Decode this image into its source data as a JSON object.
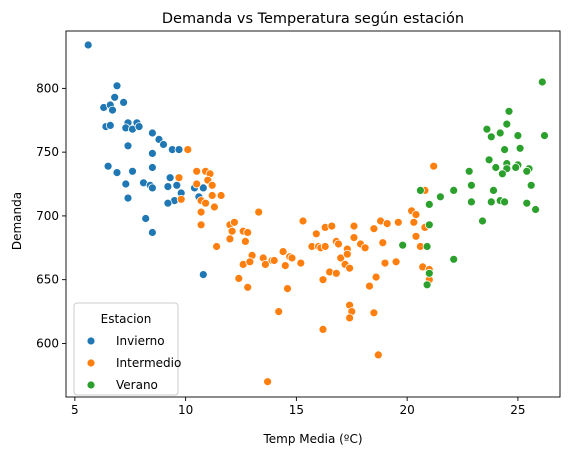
{
  "chart_data": {
    "type": "scatter",
    "title": "Demanda vs Temperatura según estación",
    "xlabel": "Temp Media (ºC)",
    "ylabel": "Demanda",
    "xlim": [
      4.6,
      26.9
    ],
    "ylim": [
      558,
      845
    ],
    "xticks": [
      5,
      10,
      15,
      20,
      25
    ],
    "yticks": [
      600,
      650,
      700,
      750,
      800
    ],
    "grid": false,
    "legend": {
      "title": "Estacion",
      "position": "lower-left"
    },
    "series": [
      {
        "name": "Invierno",
        "color": "#1f77b4",
        "points": [
          [
            5.6,
            834
          ],
          [
            6.3,
            785
          ],
          [
            6.6,
            787
          ],
          [
            6.9,
            802
          ],
          [
            6.8,
            793
          ],
          [
            7.2,
            789
          ],
          [
            6.7,
            783
          ],
          [
            6.4,
            770
          ],
          [
            6.6,
            771
          ],
          [
            7.4,
            773
          ],
          [
            7.3,
            769
          ],
          [
            7.6,
            768
          ],
          [
            7.8,
            773
          ],
          [
            7.9,
            770
          ],
          [
            8.5,
            765
          ],
          [
            8.8,
            760
          ],
          [
            9.0,
            756
          ],
          [
            9.4,
            752
          ],
          [
            9.7,
            752
          ],
          [
            8.5,
            749
          ],
          [
            7.4,
            755
          ],
          [
            6.5,
            739
          ],
          [
            6.9,
            734
          ],
          [
            7.6,
            735
          ],
          [
            8.5,
            738
          ],
          [
            9.3,
            730
          ],
          [
            9.2,
            723
          ],
          [
            9.6,
            724
          ],
          [
            9.8,
            718
          ],
          [
            8.1,
            726
          ],
          [
            8.4,
            724
          ],
          [
            8.5,
            722
          ],
          [
            7.3,
            725
          ],
          [
            7.4,
            714
          ],
          [
            9.5,
            712
          ],
          [
            9.2,
            710
          ],
          [
            10.8,
            722
          ],
          [
            10.6,
            715
          ],
          [
            10.4,
            722
          ],
          [
            8.2,
            698
          ],
          [
            8.5,
            687
          ],
          [
            10.8,
            654
          ]
        ]
      },
      {
        "name": "Intermedio",
        "color": "#ff7f0e",
        "points": [
          [
            10.1,
            752
          ],
          [
            9.7,
            730
          ],
          [
            10.5,
            735
          ],
          [
            10.9,
            735
          ],
          [
            11.1,
            733
          ],
          [
            11.0,
            728
          ],
          [
            10.5,
            725
          ],
          [
            11.2,
            724
          ],
          [
            11.2,
            716
          ],
          [
            9.8,
            713
          ],
          [
            10.7,
            712
          ],
          [
            10.9,
            710
          ],
          [
            11.3,
            707
          ],
          [
            11.6,
            716
          ],
          [
            10.7,
            703
          ],
          [
            12.0,
            693
          ],
          [
            12.2,
            695
          ],
          [
            10.7,
            693
          ],
          [
            12.1,
            688
          ],
          [
            12.0,
            682
          ],
          [
            11.4,
            676
          ],
          [
            12.6,
            688
          ],
          [
            12.8,
            687
          ],
          [
            12.7,
            680
          ],
          [
            13.3,
            703
          ],
          [
            13.0,
            669
          ],
          [
            13.5,
            667
          ],
          [
            12.6,
            662
          ],
          [
            12.9,
            664
          ],
          [
            13.9,
            665
          ],
          [
            14.0,
            665
          ],
          [
            14.4,
            672
          ],
          [
            14.7,
            668
          ],
          [
            14.8,
            667
          ],
          [
            14.5,
            661
          ],
          [
            15.2,
            663
          ],
          [
            13.6,
            662
          ],
          [
            12.4,
            651
          ],
          [
            12.8,
            644
          ],
          [
            14.6,
            643
          ],
          [
            14.2,
            625
          ],
          [
            15.3,
            696
          ],
          [
            15.7,
            676
          ],
          [
            16.0,
            676
          ],
          [
            16.1,
            675
          ],
          [
            16.3,
            676
          ],
          [
            15.9,
            686
          ],
          [
            16.3,
            691
          ],
          [
            16.6,
            692
          ],
          [
            16.8,
            680
          ],
          [
            16.9,
            678
          ],
          [
            17.3,
            674
          ],
          [
            17.0,
            667
          ],
          [
            16.5,
            656
          ],
          [
            16.8,
            655
          ],
          [
            17.2,
            662
          ],
          [
            17.3,
            670
          ],
          [
            17.6,
            692
          ],
          [
            17.9,
            678
          ],
          [
            17.6,
            683
          ],
          [
            17.4,
            659
          ],
          [
            16.2,
            650
          ],
          [
            18.1,
            675
          ],
          [
            18.5,
            690
          ],
          [
            18.9,
            679
          ],
          [
            18.8,
            696
          ],
          [
            19.1,
            694
          ],
          [
            19.6,
            695
          ],
          [
            20.2,
            704
          ],
          [
            20.4,
            701
          ],
          [
            20.8,
            720
          ],
          [
            21.2,
            739
          ],
          [
            20.3,
            695
          ],
          [
            20.4,
            684
          ],
          [
            20.6,
            676
          ],
          [
            20.8,
            691
          ],
          [
            19.5,
            664
          ],
          [
            19.0,
            663
          ],
          [
            18.6,
            652
          ],
          [
            18.3,
            645
          ],
          [
            20.7,
            660
          ],
          [
            21.0,
            658
          ],
          [
            21.0,
            650
          ],
          [
            17.4,
            630
          ],
          [
            17.5,
            625
          ],
          [
            17.4,
            620
          ],
          [
            16.2,
            611
          ],
          [
            18.5,
            624
          ],
          [
            18.7,
            591
          ],
          [
            13.7,
            570
          ]
        ]
      },
      {
        "name": "Verano",
        "color": "#2ca02c",
        "points": [
          [
            26.1,
            805
          ],
          [
            24.6,
            782
          ],
          [
            24.5,
            772
          ],
          [
            23.6,
            768
          ],
          [
            24.2,
            765
          ],
          [
            23.8,
            762
          ],
          [
            25.0,
            763
          ],
          [
            26.2,
            763
          ],
          [
            24.4,
            752
          ],
          [
            25.1,
            753
          ],
          [
            23.7,
            744
          ],
          [
            24.5,
            741
          ],
          [
            25.0,
            740
          ],
          [
            24.0,
            738
          ],
          [
            24.9,
            738
          ],
          [
            25.5,
            737
          ],
          [
            25.4,
            735
          ],
          [
            22.8,
            735
          ],
          [
            24.5,
            737
          ],
          [
            24.3,
            733
          ],
          [
            25.6,
            724
          ],
          [
            22.9,
            724
          ],
          [
            23.9,
            720
          ],
          [
            20.6,
            720
          ],
          [
            21.5,
            715
          ],
          [
            22.1,
            720
          ],
          [
            21.0,
            709
          ],
          [
            22.9,
            711
          ],
          [
            23.8,
            711
          ],
          [
            24.2,
            712
          ],
          [
            24.4,
            711
          ],
          [
            25.4,
            710
          ],
          [
            25.8,
            705
          ],
          [
            23.4,
            696
          ],
          [
            21.0,
            693
          ],
          [
            19.8,
            677
          ],
          [
            20.9,
            676
          ],
          [
            21.0,
            655
          ],
          [
            20.9,
            646
          ],
          [
            22.1,
            666
          ]
        ]
      }
    ]
  }
}
